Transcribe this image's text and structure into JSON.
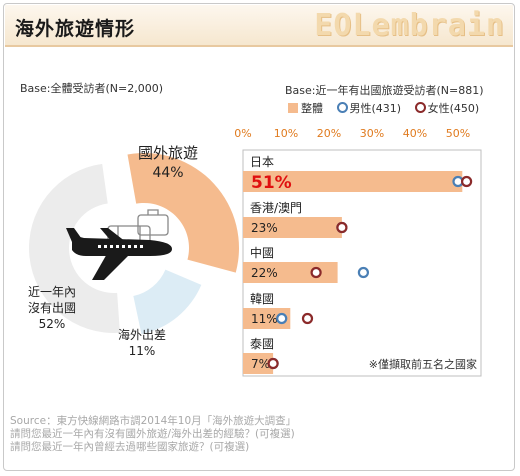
{
  "title": "海外旅遊情形",
  "brand": "EOLembrain",
  "left": {
    "base": "Base:全體受訪者(N=2,000)"
  },
  "right": {
    "base": "Base:近一年有出國旅遊受訪者(N=881)",
    "legend": {
      "total": "整體",
      "male": "男性(431)",
      "female": "女性(450)"
    },
    "note": "※僅擷取前五名之國家"
  },
  "footer": {
    "line1": "Source：東方快線網路市調2014年10月「海外旅遊大調查」",
    "line2": "請問您最近一年內有沒有國外旅遊/海外出差的經驗？(可複選)",
    "line3": "請問您最近一年內曾經去過哪些國家旅遊？(可複選)"
  },
  "colors": {
    "peach": "#f5bb8e",
    "lightblue": "#dcecf5",
    "gray": "#ececec",
    "male": "#4a7fb5",
    "female": "#8b2a2a",
    "highlight": "#e01010"
  },
  "chart_data": [
    {
      "type": "pie",
      "slices": [
        {
          "label": "國外旅遊",
          "pct": "44%",
          "value": 44
        },
        {
          "label": "海外出差",
          "pct": "11%",
          "value": 11
        },
        {
          "label_lines": [
            "近一年內",
            "沒有出國"
          ],
          "pct": "52%",
          "value": 52
        }
      ]
    },
    {
      "type": "bar",
      "xlim": [
        0,
        50
      ],
      "ticks": [
        "0%",
        "10%",
        "20%",
        "30%",
        "40%",
        "50%"
      ],
      "categories": [
        "日本",
        "香港/澳門",
        "中國",
        "韓國",
        "泰國"
      ],
      "series": [
        {
          "name": "整體",
          "values": [
            51,
            23,
            22,
            11,
            7
          ],
          "labels": [
            "51%",
            "23%",
            "22%",
            "11%",
            "7%"
          ]
        },
        {
          "name": "男性(431)",
          "values": [
            50,
            23,
            28,
            9,
            7
          ]
        },
        {
          "name": "女性(450)",
          "values": [
            52,
            23,
            17,
            15,
            7
          ]
        }
      ]
    }
  ]
}
